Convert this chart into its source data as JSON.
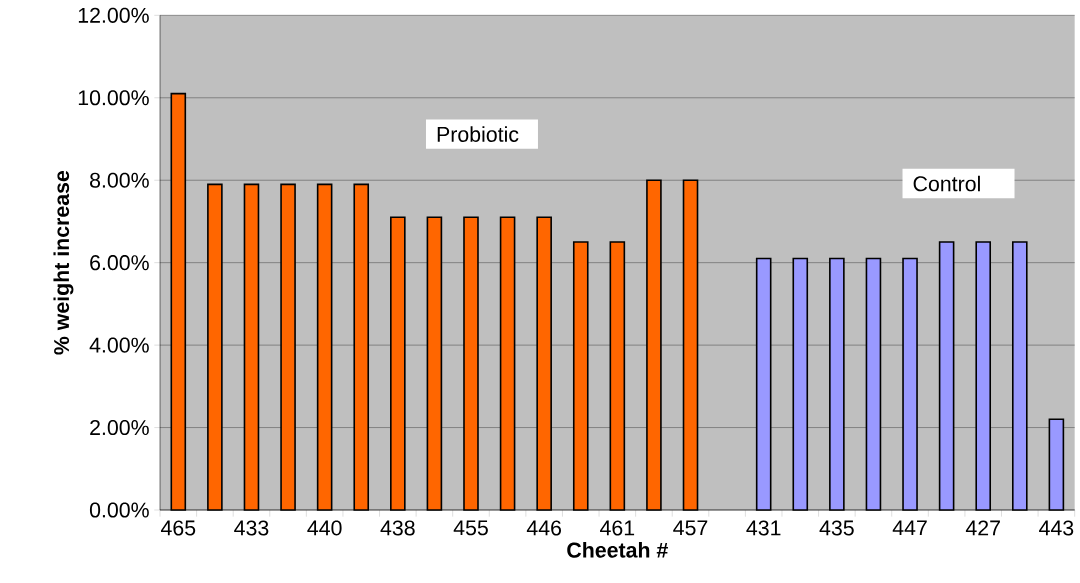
{
  "chart_data": {
    "type": "bar",
    "xlabel": "Cheetah #",
    "ylabel": "% weight increase",
    "categories": [
      "465",
      null,
      "433",
      null,
      "440",
      null,
      "438",
      null,
      "455",
      null,
      "446",
      null,
      "461",
      null,
      "457",
      null,
      "431",
      null,
      "435",
      null,
      "447",
      null,
      "427",
      null,
      "443"
    ],
    "series": [
      {
        "color": "#ff6600",
        "values": [
          10.1,
          7.9,
          7.9,
          7.9,
          7.9,
          7.9,
          7.1,
          7.1,
          7.1,
          7.1,
          7.1,
          6.5,
          6.5,
          8.0,
          8.0,
          null,
          null,
          null,
          null,
          null,
          null,
          null,
          null,
          null,
          null
        ]
      },
      {
        "color": "#9999ff",
        "values": [
          null,
          null,
          null,
          null,
          null,
          null,
          null,
          null,
          null,
          null,
          null,
          null,
          null,
          null,
          null,
          null,
          6.1,
          6.1,
          6.1,
          6.1,
          6.1,
          6.5,
          6.5,
          6.5,
          2.2
        ]
      }
    ],
    "ylim": [
      0,
      12
    ],
    "yticks": [
      {
        "value": 0,
        "label": "0.00%"
      },
      {
        "value": 2,
        "label": "2.00%"
      },
      {
        "value": 4,
        "label": "4.00%"
      },
      {
        "value": 6,
        "label": "6.00%"
      },
      {
        "value": 8,
        "label": "8.00%"
      },
      {
        "value": 10,
        "label": "10.00%"
      },
      {
        "value": 12,
        "label": "12.00%"
      }
    ],
    "annotations": [
      "Probiotic",
      "Control"
    ],
    "grid": "y"
  }
}
